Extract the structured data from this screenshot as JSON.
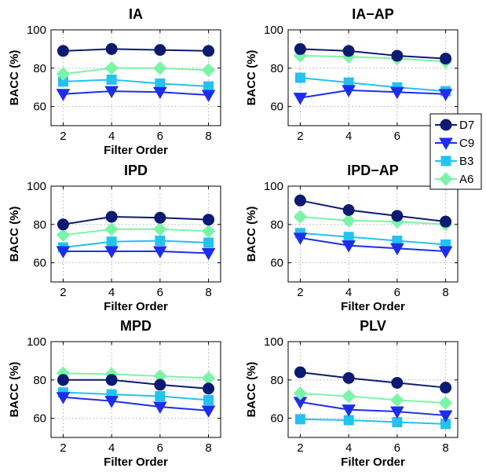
{
  "chart_data": [
    {
      "type": "line",
      "title": "IA",
      "xlabel": "Filter Order",
      "ylabel": "BACC (%)",
      "x": [
        2,
        4,
        6,
        8
      ],
      "xlim": [
        1.5,
        8.5
      ],
      "ylim": [
        50,
        100
      ],
      "yticks": [
        60,
        80,
        100
      ],
      "grid": true,
      "series": [
        {
          "name": "D7",
          "values": [
            89,
            90,
            89.5,
            89
          ]
        },
        {
          "name": "C9",
          "values": [
            66.5,
            68,
            67.5,
            66
          ]
        },
        {
          "name": "B3",
          "values": [
            73,
            74,
            72,
            70.5
          ]
        },
        {
          "name": "A6",
          "values": [
            77,
            80,
            80,
            79
          ]
        }
      ]
    },
    {
      "type": "line",
      "title": "IA−AP",
      "xlabel": "",
      "ylabel": "BACC (%)",
      "x": [
        2,
        4,
        6,
        8
      ],
      "xlim": [
        1.5,
        8.5
      ],
      "ylim": [
        50,
        100
      ],
      "yticks": [
        60,
        80,
        100
      ],
      "grid": true,
      "series": [
        {
          "name": "D7",
          "values": [
            90,
            89,
            86.5,
            85
          ]
        },
        {
          "name": "C9",
          "values": [
            64.5,
            68.5,
            67.5,
            66.5
          ]
        },
        {
          "name": "B3",
          "values": [
            75,
            72.5,
            70,
            68
          ]
        },
        {
          "name": "A6",
          "values": [
            86.5,
            86,
            85,
            83.5
          ]
        }
      ]
    },
    {
      "type": "line",
      "title": "IPD",
      "xlabel": "Filter Order",
      "ylabel": "BACC (%)",
      "x": [
        2,
        4,
        6,
        8
      ],
      "xlim": [
        1.5,
        8.5
      ],
      "ylim": [
        50,
        100
      ],
      "yticks": [
        60,
        80,
        100
      ],
      "grid": true,
      "series": [
        {
          "name": "D7",
          "values": [
            80,
            84,
            83.5,
            82.5
          ]
        },
        {
          "name": "C9",
          "values": [
            66,
            66,
            66,
            65
          ]
        },
        {
          "name": "B3",
          "values": [
            68,
            71,
            71.5,
            70.5
          ]
        },
        {
          "name": "A6",
          "values": [
            74.5,
            77.5,
            77.5,
            76.5
          ]
        }
      ]
    },
    {
      "type": "line",
      "title": "IPD−AP",
      "xlabel": "Filter Order",
      "ylabel": "BACC (%)",
      "x": [
        2,
        4,
        6,
        8
      ],
      "xlim": [
        1.5,
        8.5
      ],
      "ylim": [
        50,
        100
      ],
      "yticks": [
        60,
        80,
        100
      ],
      "grid": true,
      "series": [
        {
          "name": "D7",
          "values": [
            92.5,
            87.5,
            84.5,
            81.5
          ]
        },
        {
          "name": "C9",
          "values": [
            73,
            69,
            67.5,
            66
          ]
        },
        {
          "name": "B3",
          "values": [
            75.5,
            73.5,
            71.5,
            69.5
          ]
        },
        {
          "name": "A6",
          "values": [
            84,
            82,
            81.5,
            80
          ]
        }
      ]
    },
    {
      "type": "line",
      "title": "MPD",
      "xlabel": "Filter Order",
      "ylabel": "BACC (%)",
      "x": [
        2,
        4,
        6,
        8
      ],
      "xlim": [
        1.5,
        8.5
      ],
      "ylim": [
        50,
        100
      ],
      "yticks": [
        60,
        80,
        100
      ],
      "grid": true,
      "series": [
        {
          "name": "D7",
          "values": [
            80,
            80,
            77.5,
            75.5
          ]
        },
        {
          "name": "C9",
          "values": [
            71,
            69,
            66,
            64
          ]
        },
        {
          "name": "B3",
          "values": [
            73.5,
            72.5,
            71.5,
            69.5
          ]
        },
        {
          "name": "A6",
          "values": [
            83.5,
            83,
            82,
            81
          ]
        }
      ]
    },
    {
      "type": "line",
      "title": "PLV",
      "xlabel": "Filter Order",
      "ylabel": "BACC (%)",
      "x": [
        2,
        4,
        6,
        8
      ],
      "xlim": [
        1.5,
        8.5
      ],
      "ylim": [
        50,
        100
      ],
      "yticks": [
        60,
        80,
        100
      ],
      "grid": true,
      "series": [
        {
          "name": "D7",
          "values": [
            84,
            81,
            78.5,
            76
          ]
        },
        {
          "name": "C9",
          "values": [
            68.5,
            64.5,
            63.5,
            61.5
          ]
        },
        {
          "name": "B3",
          "values": [
            59.5,
            59,
            58,
            57
          ]
        },
        {
          "name": "A6",
          "values": [
            73,
            71.5,
            69.5,
            68
          ]
        }
      ]
    }
  ],
  "legend": {
    "placement": "right",
    "entries": [
      {
        "label": "D7",
        "color": "#0c1a73",
        "marker": "circle"
      },
      {
        "label": "C9",
        "color": "#1d2eea",
        "marker": "triangle-down"
      },
      {
        "label": "B3",
        "color": "#22c3ee",
        "marker": "square"
      },
      {
        "label": "A6",
        "color": "#7cf4a7",
        "marker": "diamond"
      }
    ]
  }
}
